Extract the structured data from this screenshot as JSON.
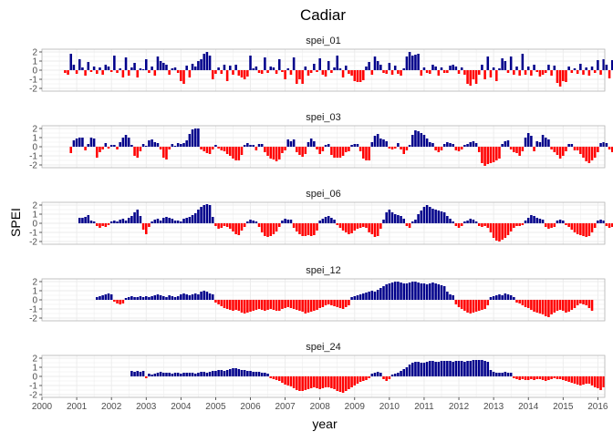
{
  "title": "Cadiar",
  "ylabel": "SPEI",
  "xlabel": "year",
  "colors": {
    "positive": "#00008B",
    "negative": "#FF0000",
    "panel_border": "#B3B3B3",
    "grid": "#EBEBEB"
  },
  "x_ticks": [
    "2000",
    "2001",
    "2002",
    "2003",
    "2004",
    "2005",
    "2006",
    "2007",
    "2008",
    "2009",
    "2010",
    "2011",
    "2012",
    "2013",
    "2014",
    "2015",
    "2016"
  ],
  "y_ticks": [
    "2",
    "1",
    "0",
    "-1",
    "-2"
  ],
  "chart_data": [
    {
      "type": "bar",
      "name": "spei_01",
      "x_start": "2000-09",
      "ylim": [
        -2.3,
        2.3
      ],
      "values": [
        -0.3,
        -0.5,
        1.8,
        0.6,
        -0.4,
        1.2,
        0.3,
        -0.6,
        0.9,
        -0.2,
        0.4,
        -0.4,
        0.3,
        -0.5,
        0.6,
        0.4,
        -0.2,
        1.6,
        -0.3,
        0.2,
        -0.8,
        1.4,
        -0.6,
        0.3,
        0.8,
        -0.8,
        0.2,
        0.1,
        1.2,
        -0.3,
        0.4,
        -0.6,
        1.5,
        1.0,
        0.8,
        0.6,
        -0.5,
        0.2,
        0.3,
        -0.3,
        -1.2,
        -1.5,
        0.5,
        -0.8,
        0.7,
        0.4,
        1.0,
        1.2,
        1.8,
        2.0,
        1.6,
        -1.0,
        -0.4,
        0.3,
        -0.4,
        0.6,
        -1.2,
        0.5,
        -0.5,
        0.6,
        -0.6,
        -0.8,
        -1.0,
        -0.7,
        1.6,
        0.2,
        0.4,
        -0.3,
        -0.4,
        1.4,
        -0.3,
        0.4,
        0.3,
        -0.4,
        1.2,
        -0.2,
        -1.0,
        0.2,
        -0.5,
        1.4,
        -1.5,
        -1.0,
        -1.5,
        0.4,
        -0.6,
        -0.3,
        0.7,
        -0.2,
        1.3,
        -0.5,
        -0.7,
        1.0,
        -0.3,
        0.3,
        1.6,
        0.2,
        -0.8,
        0.5,
        -0.4,
        -0.6,
        -1.2,
        -1.3,
        -1.3,
        -1.1,
        0.4,
        0.9,
        -0.5,
        1.5,
        1.0,
        0.6,
        -0.3,
        -0.4,
        0.8,
        -0.5,
        0.5,
        -0.4,
        -0.6,
        0.2,
        1.5,
        2.0,
        1.6,
        1.7,
        1.8,
        -0.6,
        0.3,
        -0.3,
        -0.4,
        0.6,
        0.4,
        -0.6,
        0.3,
        -0.3,
        -0.3,
        0.5,
        0.6,
        0.4,
        -0.4,
        0.3,
        -0.5,
        -1.5,
        -1.7,
        -1.0,
        -1.5,
        -0.5,
        0.6,
        -1.0,
        1.5,
        -0.8,
        0.3,
        -1.2,
        0.2,
        1.3,
        1.0,
        -0.3,
        1.5,
        -0.5,
        0.4,
        -0.6,
        1.8,
        -0.5,
        0.4,
        -0.6,
        0.6,
        -0.2,
        -0.7,
        -0.5,
        -0.3,
        0.6,
        -0.6,
        0.5,
        -1.4,
        -1.8,
        -1.2,
        -1.3,
        0.4,
        -0.3,
        0.2,
        -0.4,
        0.7,
        -0.5,
        0.3,
        -0.6,
        0.4,
        -0.3,
        1.1,
        -0.5,
        1.2,
        0.6,
        -0.9,
        1.1,
        -1.7
      ]
    },
    {
      "type": "bar",
      "name": "spei_03",
      "x_start": "2000-11",
      "ylim": [
        -2.3,
        2.3
      ],
      "values": [
        -0.7,
        0.7,
        0.9,
        1.0,
        1.0,
        -0.4,
        0.3,
        1.0,
        0.9,
        -1.2,
        -0.6,
        -0.3,
        0.4,
        -0.2,
        0.2,
        0.2,
        -0.3,
        0.5,
        1.0,
        1.3,
        1.0,
        0.2,
        -1.0,
        -1.2,
        -0.5,
        0.3,
        0.1,
        0.7,
        0.8,
        0.5,
        0.4,
        -0.3,
        -1.2,
        -1.4,
        -0.3,
        0.3,
        0.1,
        0.4,
        0.3,
        0.4,
        0.7,
        1.4,
        1.9,
        2.0,
        2.0,
        -0.3,
        -0.5,
        -0.7,
        -0.8,
        -0.3,
        0.2,
        -0.2,
        -0.4,
        -0.5,
        -0.8,
        -1.0,
        -1.3,
        -1.5,
        -1.5,
        -0.9,
        0.2,
        0.4,
        0.2,
        0.2,
        -0.4,
        0.3,
        0.3,
        -0.6,
        -1.0,
        -1.3,
        -1.4,
        -1.6,
        -1.4,
        -0.7,
        -0.4,
        0.8,
        0.6,
        0.8,
        -0.6,
        -0.9,
        -1.1,
        -0.8,
        0.5,
        0.9,
        0.6,
        -0.3,
        -0.8,
        -0.5,
        0.2,
        0.3,
        -0.9,
        -1.2,
        -1.2,
        -1.2,
        -1.0,
        -0.6,
        -0.5,
        0.2,
        0.3,
        0.3,
        -0.5,
        -1.3,
        -1.5,
        -1.5,
        0.5,
        1.2,
        1.4,
        0.9,
        0.8,
        0.6,
        -0.2,
        -0.3,
        -0.2,
        0.4,
        -0.3,
        -0.8,
        -0.4,
        0.2,
        1.3,
        1.8,
        1.7,
        1.5,
        1.3,
        0.9,
        0.5,
        0.4,
        -0.4,
        -0.6,
        -0.4,
        0.3,
        0.5,
        0.4,
        0.3,
        -0.4,
        -0.5,
        -0.3,
        0.2,
        0.3,
        0.5,
        0.6,
        0.4,
        -0.6,
        -1.8,
        -2.1,
        -1.9,
        -1.8,
        -1.7,
        -1.5,
        -1.3,
        0.3,
        0.6,
        0.7,
        -0.3,
        -0.6,
        -0.7,
        -1.0,
        -0.5,
        1.0,
        1.5,
        1.2,
        -0.5,
        0.6,
        0.5,
        1.3,
        1.0,
        0.8,
        -0.3,
        -0.6,
        -0.9,
        -1.3,
        -1.0,
        -0.5,
        0.3,
        0.3,
        -0.4,
        -0.4,
        -0.8,
        -1.2,
        -1.6,
        -1.8,
        -1.5,
        -1.2,
        -0.6,
        0.4,
        0.5,
        0.4,
        -0.3,
        -0.6,
        -0.5,
        -0.3,
        0.3,
        0.4,
        0.2,
        -0.3,
        0.4,
        0.9,
        0.6,
        -0.3
      ]
    },
    {
      "type": "bar",
      "name": "spei_06",
      "x_start": "2001-02",
      "ylim": [
        -2.3,
        2.3
      ],
      "values": [
        0.6,
        0.6,
        0.7,
        0.9,
        0.3,
        0.2,
        -0.3,
        -0.5,
        -0.3,
        -0.4,
        -0.2,
        0.2,
        0.3,
        0.2,
        0.4,
        0.5,
        0.3,
        0.6,
        0.8,
        1.2,
        1.5,
        0.8,
        -0.7,
        -1.2,
        -0.4,
        0.2,
        0.4,
        0.5,
        0.3,
        0.6,
        0.7,
        0.6,
        0.5,
        0.3,
        0.3,
        0.2,
        0.5,
        0.6,
        0.7,
        0.9,
        1.1,
        1.5,
        1.8,
        2.0,
        2.1,
        2.0,
        0.7,
        -0.3,
        -0.6,
        -0.5,
        -0.3,
        -0.4,
        -0.6,
        -0.9,
        -1.2,
        -1.3,
        -0.8,
        -0.4,
        0.2,
        0.4,
        0.3,
        0.2,
        -0.4,
        -1.0,
        -1.4,
        -1.5,
        -1.4,
        -1.2,
        -0.9,
        -0.4,
        0.3,
        0.5,
        0.4,
        0.4,
        -0.5,
        -0.9,
        -1.2,
        -1.4,
        -1.4,
        -1.3,
        -1.4,
        -1.3,
        -0.8,
        0.3,
        0.5,
        0.7,
        0.8,
        0.6,
        0.4,
        -0.2,
        -0.5,
        -0.8,
        -1.0,
        -1.2,
        -1.1,
        -0.8,
        -0.6,
        -0.5,
        -0.4,
        -0.5,
        -1.0,
        -1.2,
        -1.5,
        -1.4,
        -0.6,
        0.4,
        1.2,
        1.5,
        1.2,
        1.0,
        0.9,
        0.8,
        0.5,
        -0.3,
        -0.5,
        0.2,
        0.4,
        1.0,
        1.4,
        1.8,
        2.0,
        1.8,
        1.6,
        1.5,
        1.4,
        1.3,
        1.2,
        0.8,
        0.5,
        0.2,
        -0.3,
        -0.5,
        -0.3,
        0.2,
        0.3,
        0.5,
        0.4,
        0.2,
        -0.3,
        -0.4,
        -0.3,
        -0.5,
        -1.0,
        -1.6,
        -1.9,
        -2.0,
        -1.8,
        -1.6,
        -1.3,
        -0.9,
        -0.5,
        -0.3,
        -0.3,
        -0.2,
        0.3,
        0.6,
        0.9,
        0.8,
        0.6,
        0.5,
        0.4,
        -0.4,
        -0.6,
        -0.5,
        -0.4,
        0.3,
        0.4,
        0.3,
        -0.2,
        -0.4,
        -0.7,
        -1.0,
        -1.2,
        -1.3,
        -1.4,
        -1.5,
        -1.4,
        -1.0,
        -0.5,
        0.3,
        0.4,
        0.3,
        -0.3,
        -0.5,
        -0.4,
        0.2,
        0.3,
        0.2,
        0.2,
        -0.2,
        -0.1
      ]
    },
    {
      "type": "bar",
      "name": "spei_12",
      "x_start": "2001-08",
      "ylim": [
        -2.3,
        2.3
      ],
      "values": [
        0.3,
        0.4,
        0.5,
        0.6,
        0.7,
        0.6,
        -0.2,
        -0.4,
        -0.5,
        -0.4,
        0.2,
        0.3,
        0.4,
        0.3,
        0.3,
        0.4,
        0.3,
        0.4,
        0.3,
        0.4,
        0.5,
        0.6,
        0.5,
        0.4,
        0.3,
        0.5,
        0.4,
        0.3,
        0.4,
        0.6,
        0.7,
        0.6,
        0.5,
        0.6,
        0.7,
        0.6,
        0.9,
        1.0,
        0.9,
        0.7,
        0.6,
        -0.3,
        -0.5,
        -0.7,
        -0.9,
        -1.0,
        -1.1,
        -1.2,
        -1.1,
        -1.2,
        -1.4,
        -1.5,
        -1.4,
        -1.3,
        -1.2,
        -1.1,
        -1.0,
        -1.1,
        -1.2,
        -1.1,
        -1.0,
        -1.1,
        -1.2,
        -1.2,
        -1.0,
        -0.9,
        -0.8,
        -0.9,
        -1.0,
        -1.1,
        -1.2,
        -1.3,
        -1.5,
        -1.4,
        -1.3,
        -1.2,
        -1.1,
        -0.9,
        -0.8,
        -0.6,
        -0.5,
        -0.6,
        -0.7,
        -0.8,
        -0.9,
        -1.0,
        -0.8,
        -0.6,
        0.3,
        0.4,
        0.5,
        0.6,
        0.7,
        0.8,
        0.9,
        1.0,
        0.9,
        1.1,
        1.3,
        1.5,
        1.7,
        1.8,
        1.9,
        2.0,
        2.0,
        1.9,
        1.8,
        1.8,
        1.9,
        2.0,
        2.0,
        1.9,
        1.8,
        1.8,
        1.7,
        1.8,
        1.9,
        1.8,
        1.7,
        1.6,
        1.5,
        0.9,
        0.6,
        0.5,
        -0.5,
        -0.8,
        -1.0,
        -1.2,
        -1.4,
        -1.5,
        -1.4,
        -1.3,
        -1.2,
        -1.1,
        -1.0,
        -0.6,
        0.3,
        0.4,
        0.5,
        0.6,
        0.5,
        0.7,
        0.6,
        0.5,
        0.3,
        -0.3,
        -0.4,
        -0.6,
        -0.8,
        -0.9,
        -1.1,
        -1.3,
        -1.4,
        -1.5,
        -1.6,
        -1.8,
        -1.9,
        -1.6,
        -1.4,
        -1.2,
        -1.1,
        -1.2,
        -1.4,
        -1.3,
        -1.1,
        -0.9,
        -0.6,
        -0.4,
        -0.5,
        -0.6,
        -0.9,
        -1.2
      ]
    },
    {
      "type": "bar",
      "name": "spei_24",
      "x_start": "2002-08",
      "ylim": [
        -2.3,
        2.3
      ],
      "values": [
        0.6,
        0.5,
        0.6,
        0.5,
        0.6,
        -0.2,
        0.3,
        0.2,
        0.3,
        0.4,
        0.5,
        0.4,
        0.4,
        0.4,
        0.3,
        0.4,
        0.4,
        0.3,
        0.4,
        0.4,
        0.4,
        0.4,
        0.3,
        0.4,
        0.5,
        0.5,
        0.4,
        0.5,
        0.6,
        0.6,
        0.7,
        0.7,
        0.6,
        0.7,
        0.8,
        0.9,
        0.9,
        0.8,
        0.7,
        0.7,
        0.6,
        0.6,
        0.5,
        0.5,
        0.5,
        0.4,
        0.4,
        0.3,
        -0.2,
        -0.3,
        -0.4,
        -0.5,
        -0.7,
        -0.9,
        -1.0,
        -1.1,
        -1.3,
        -1.5,
        -1.6,
        -1.6,
        -1.5,
        -1.4,
        -1.3,
        -1.2,
        -1.3,
        -1.4,
        -1.3,
        -1.2,
        -1.2,
        -1.3,
        -1.4,
        -1.6,
        -1.7,
        -1.8,
        -1.6,
        -1.4,
        -1.2,
        -1.0,
        -0.8,
        -0.6,
        -0.5,
        -0.4,
        -0.2,
        0.3,
        0.4,
        0.5,
        0.4,
        -0.3,
        -0.5,
        -0.3,
        0.2,
        0.3,
        0.4,
        0.6,
        0.8,
        1.0,
        1.3,
        1.5,
        1.6,
        1.6,
        1.5,
        1.5,
        1.6,
        1.7,
        1.7,
        1.6,
        1.6,
        1.7,
        1.7,
        1.7,
        1.7,
        1.6,
        1.7,
        1.7,
        1.7,
        1.6,
        1.7,
        1.7,
        1.8,
        1.8,
        1.8,
        1.8,
        1.7,
        1.6,
        0.7,
        0.5,
        0.4,
        0.4,
        0.4,
        0.5,
        0.4,
        0.4,
        -0.2,
        -0.3,
        -0.4,
        -0.3,
        -0.4,
        -0.4,
        -0.3,
        -0.4,
        -0.3,
        -0.3,
        -0.4,
        -0.5,
        -0.4,
        -0.3,
        -0.2,
        -0.3,
        -0.3,
        -0.4,
        -0.5,
        -0.6,
        -0.7,
        -0.8,
        -0.9,
        -1.0,
        -0.9,
        -0.8,
        -0.8,
        -1.0,
        -1.2,
        -1.3,
        -1.5,
        -1.2
      ]
    }
  ]
}
